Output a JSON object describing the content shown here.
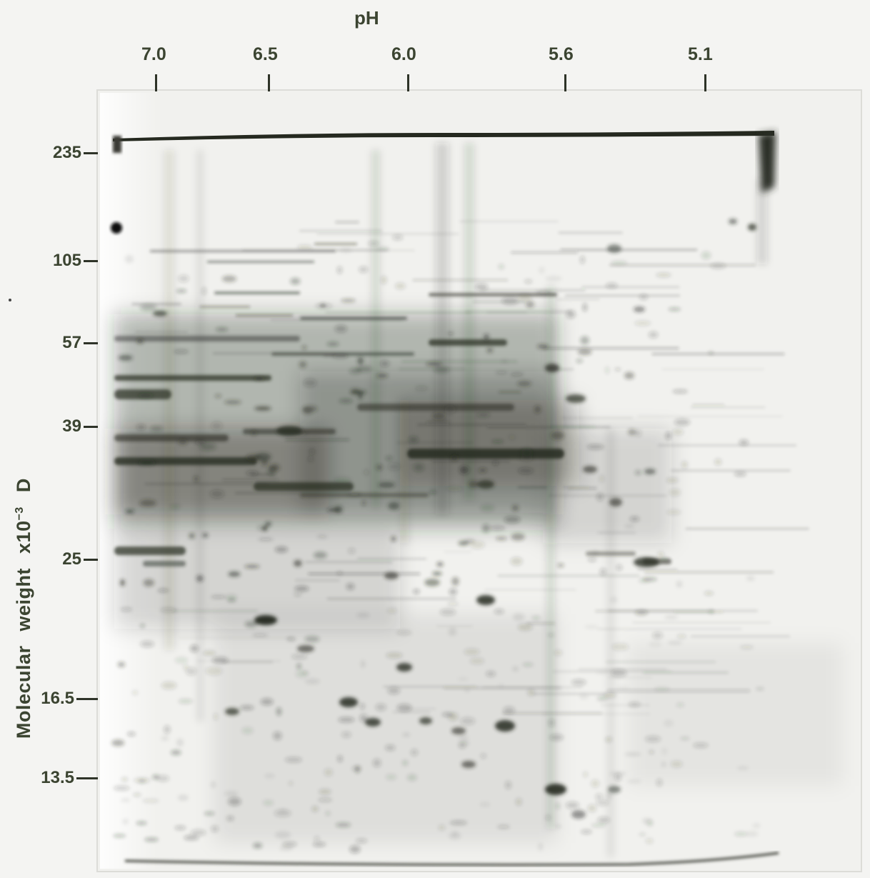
{
  "axes": {
    "top": {
      "title": "pH",
      "ticks": [
        "7.0",
        "6.5",
        "6.0",
        "5.6",
        "5.1"
      ]
    },
    "left": {
      "title_prefix": "Molecular  weight  x10",
      "title_exp": "−3",
      "title_suffix": " D",
      "ticks": [
        "235",
        "105",
        "57",
        "39",
        "25",
        "16.5",
        "13.5"
      ]
    }
  },
  "colors": {
    "background": "#f4f4f2",
    "gel_base": "#f1f1ee",
    "ink": "#25291f",
    "label": "#3b4431"
  }
}
